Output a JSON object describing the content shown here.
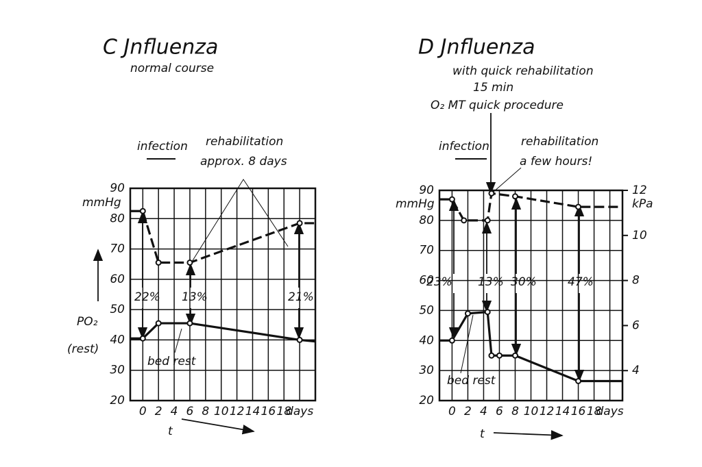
{
  "chart_data": [
    {
      "type": "line",
      "title": "C Jnfluenza",
      "subtitle": "normal course",
      "xlim": [
        -1.6,
        22
      ],
      "ylim": [
        20,
        90
      ],
      "xticks": [
        0,
        2,
        4,
        6,
        8,
        10,
        12,
        14,
        16,
        18,
        {
          "value": 20,
          "label": "days"
        }
      ],
      "yticks": [
        20,
        30,
        40,
        50,
        60,
        70,
        80,
        90
      ],
      "grid": true,
      "series": [
        {
          "color": "#111111",
          "dash": true,
          "x": [
            -1.6,
            0,
            2,
            6,
            20,
            22
          ],
          "values": [
            82.5,
            82.5,
            65.5,
            65.5,
            78.5,
            78.5
          ]
        },
        {
          "color": "#111111",
          "dash": false,
          "x": [
            -1.6,
            0,
            2,
            6,
            20,
            22
          ],
          "values": [
            40.5,
            40.5,
            45.5,
            45.5,
            40,
            39.5
          ]
        }
      ],
      "annotations": [
        "infection",
        "rehabilitation",
        "approx. 8 days",
        "22%",
        "13%",
        "21%",
        "bed rest",
        "mmHg",
        "PO₂",
        "(rest)",
        "t"
      ]
    },
    {
      "type": "line",
      "title": "D Jnfluenza",
      "subtitle": "with quick rehabilitation",
      "xlim": [
        -1.6,
        21.6
      ],
      "ylim": [
        20,
        90
      ],
      "xticks": [
        0,
        2,
        4,
        6,
        8,
        10,
        12,
        14,
        16,
        18,
        {
          "value": 20,
          "label": "days"
        }
      ],
      "yticks": [
        20,
        30,
        40,
        50,
        60,
        70,
        80,
        90
      ],
      "y2lim": [
        2.67,
        12
      ],
      "y2ticks": [
        4,
        6,
        8,
        10,
        12
      ],
      "grid": true,
      "series": [
        {
          "color": "#111111",
          "dash": true,
          "x": [
            -1.6,
            0,
            1.5,
            4.5,
            5,
            8,
            16,
            21.6
          ],
          "values": [
            87,
            87,
            80,
            80,
            89,
            88,
            84.5,
            84.5
          ]
        },
        {
          "color": "#111111",
          "dash": false,
          "x": [
            -1.6,
            0,
            2,
            4.5,
            5,
            6,
            8,
            16,
            21.6
          ],
          "values": [
            40,
            40,
            49,
            49.5,
            35,
            35,
            35,
            26.5,
            26.5
          ]
        }
      ],
      "annotations": [
        "15 min",
        "O₂ MT quick procedure",
        "infection",
        "rehabilitation",
        "a few hours!",
        "23%",
        "13%",
        "30%",
        "47%",
        "bed rest",
        "mmHg",
        "kPa",
        "t"
      ]
    }
  ]
}
